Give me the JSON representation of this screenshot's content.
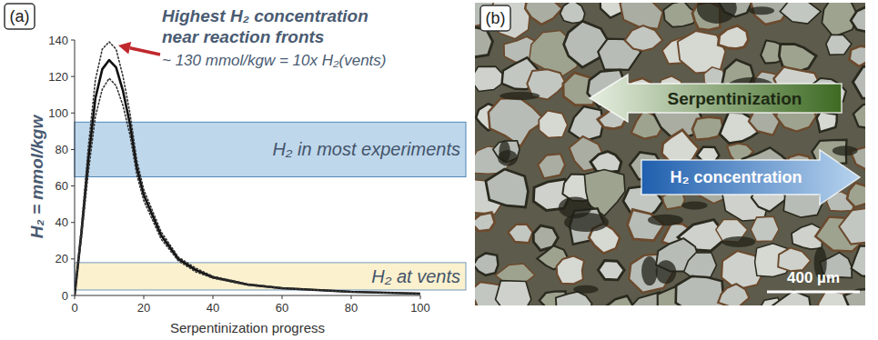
{
  "chart_data": {
    "type": "line",
    "panel_label": "(a)",
    "x_label": "Serpentinization progress",
    "y_label": "H₂ = mmol/kgw",
    "x": [
      0,
      2,
      4,
      6,
      8,
      10,
      12,
      14,
      16,
      18,
      20,
      25,
      30,
      35,
      40,
      50,
      60,
      70,
      80,
      90,
      100
    ],
    "series": [
      {
        "color": "#111111",
        "line_style": "solid",
        "values": [
          0,
          35,
          75,
          108,
          124,
          129,
          125,
          112,
          94,
          70,
          55,
          33,
          20,
          14,
          10,
          6,
          4,
          3,
          2,
          1.5,
          1
        ]
      },
      {
        "color": "#333333",
        "line_style": "dotted",
        "values": [
          0,
          38,
          82,
          118,
          135,
          139,
          135,
          120,
          100,
          74,
          58,
          35,
          21,
          15,
          10.5,
          6.3,
          4.2,
          3.1,
          2.1,
          1.6,
          1.1
        ]
      },
      {
        "color": "#333333",
        "line_style": "dotted",
        "values": [
          0,
          32,
          68,
          98,
          113,
          119,
          115,
          104,
          88,
          66,
          52,
          31,
          19,
          13,
          9.5,
          5.7,
          3.8,
          2.9,
          1.9,
          1.4,
          0.9
        ]
      }
    ],
    "xlim": [
      0,
      100
    ],
    "xticks": [
      0,
      20,
      40,
      60,
      80,
      100
    ],
    "ylim": [
      0,
      140
    ],
    "yticks": [
      0,
      20,
      40,
      60,
      80,
      100,
      120,
      140
    ],
    "annotation": [
      "Highest H₂ concentration",
      "near reaction fronts",
      "~ 130 mmol/kgw = 10x H₂(vents)"
    ],
    "bands": [
      {
        "label": "H₂ in most experiments",
        "y": [
          65,
          95
        ],
        "color": "#b3d0e8"
      },
      {
        "label": "H₂  at vents",
        "y": [
          3,
          18
        ],
        "color": "#fbeec6"
      }
    ]
  },
  "image": {
    "panel_label": "(b)",
    "arrows": [
      {
        "label": "Serpentinization",
        "direction": "left"
      },
      {
        "label": "H₂ concentration",
        "direction": "right"
      }
    ],
    "scale_bar": "400 µm"
  }
}
